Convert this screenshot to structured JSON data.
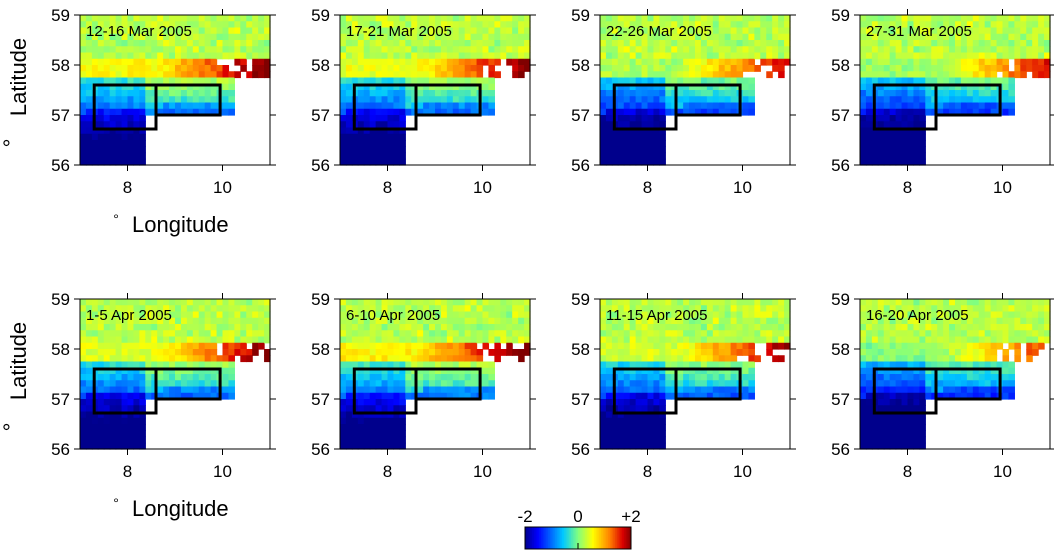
{
  "axes": {
    "x_label": "Longitude",
    "y_label": "Latitude",
    "degree_symbol": "°",
    "x_ticks": [
      "8",
      "10"
    ],
    "y_ticks": [
      "56",
      "57",
      "58",
      "59"
    ]
  },
  "colorbar": {
    "labels": [
      "-2",
      "0",
      "+2"
    ],
    "range": [
      -2,
      2
    ],
    "colors": [
      "#0000a0",
      "#0040ff",
      "#00c8ff",
      "#80ff80",
      "#ffff00",
      "#ff8000",
      "#e00000",
      "#800000"
    ]
  },
  "chart_data": [
    {
      "type": "heatmap",
      "title": "12-16 Mar 2005",
      "xlim": [
        7,
        11
      ],
      "ylim": [
        56,
        59
      ],
      "level": 0.2
    },
    {
      "type": "heatmap",
      "title": "17-21 Mar 2005",
      "xlim": [
        7,
        11
      ],
      "ylim": [
        56,
        59
      ],
      "level": 0.15
    },
    {
      "type": "heatmap",
      "title": "22-26 Mar 2005",
      "xlim": [
        7,
        11
      ],
      "ylim": [
        56,
        59
      ],
      "level": -0.1
    },
    {
      "type": "heatmap",
      "title": "27-31 Mar 2005",
      "xlim": [
        7,
        11
      ],
      "ylim": [
        56,
        59
      ],
      "level": -0.15
    },
    {
      "type": "heatmap",
      "title": "1-5 Apr 2005",
      "xlim": [
        7,
        11
      ],
      "ylim": [
        56,
        59
      ],
      "level": 0.1
    },
    {
      "type": "heatmap",
      "title": "6-10 Apr 2005",
      "xlim": [
        7,
        11
      ],
      "ylim": [
        56,
        59
      ],
      "level": 0.25
    },
    {
      "type": "heatmap",
      "title": "11-15 Apr 2005",
      "xlim": [
        7,
        11
      ],
      "ylim": [
        56,
        59
      ],
      "level": 0.05
    },
    {
      "type": "heatmap",
      "title": "16-20 Apr 2005",
      "xlim": [
        7,
        11
      ],
      "ylim": [
        56,
        59
      ],
      "level": -0.25
    }
  ]
}
